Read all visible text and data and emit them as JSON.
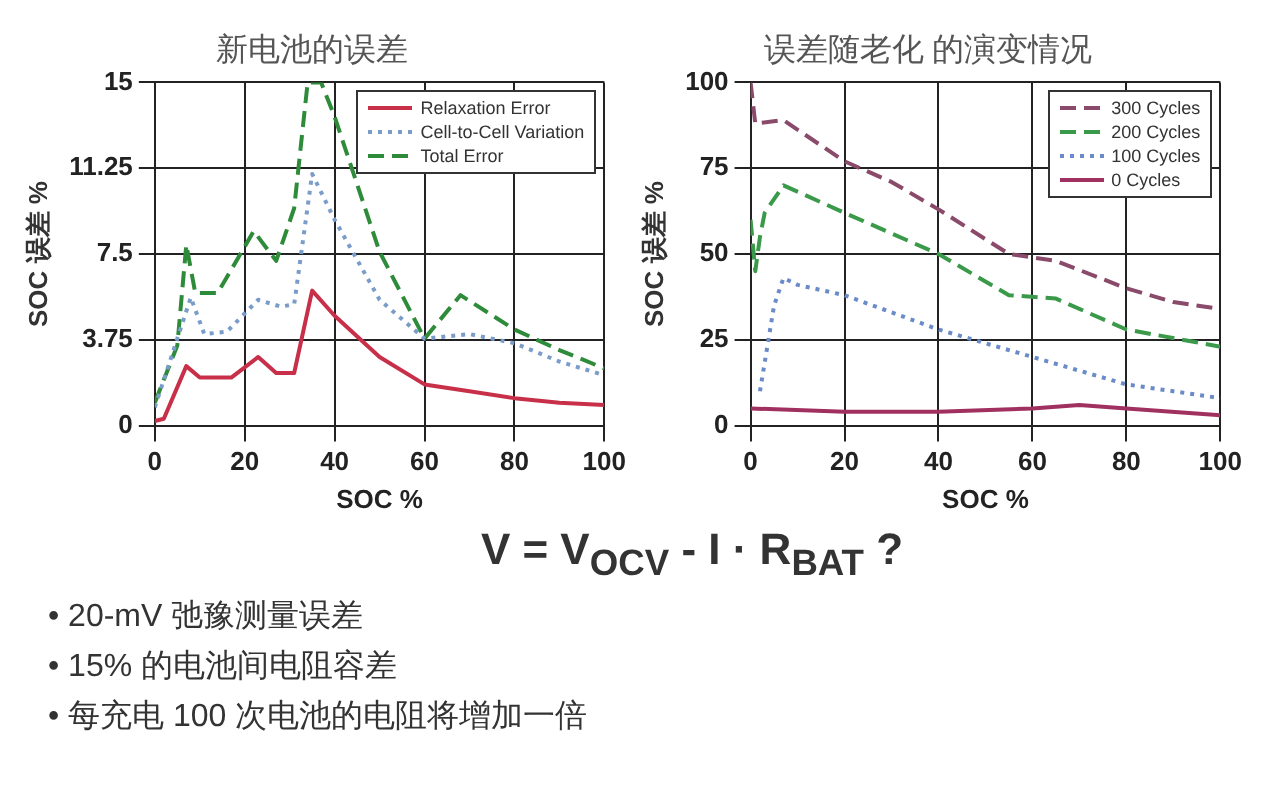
{
  "chart_data": [
    {
      "type": "line",
      "title": "新电池的误差",
      "xlabel": "SOC %",
      "ylabel": "SOC 误差 %",
      "xlim": [
        0,
        100
      ],
      "xticks": [
        0,
        20,
        40,
        60,
        80,
        100
      ],
      "ylim": [
        0,
        15
      ],
      "yticks": [
        0,
        3.75,
        7.5,
        11.25,
        15
      ],
      "grid": true,
      "legend": "top right",
      "marker": "none",
      "series": [
        {
          "name": "Relaxation Error",
          "color": "#c8304a",
          "line_style": "solid",
          "x": [
            0,
            2,
            7,
            10,
            17,
            23,
            27,
            31,
            35,
            40,
            50,
            60,
            70,
            80,
            90,
            100
          ],
          "values": [
            0.2,
            0.3,
            2.6,
            2.1,
            2.1,
            3.0,
            2.3,
            2.3,
            5.9,
            4.8,
            3.0,
            1.8,
            1.5,
            1.2,
            1.0,
            0.9
          ]
        },
        {
          "name": "Cell-to-Cell Variation",
          "color": "#7a9cc8",
          "line_style": "dotted",
          "x": [
            0,
            5,
            8,
            11,
            16,
            23,
            28,
            31,
            35,
            40,
            50,
            60,
            70,
            80,
            90,
            100
          ],
          "values": [
            0.8,
            3.8,
            5.6,
            4.0,
            4.1,
            5.5,
            5.2,
            5.3,
            11.0,
            9.0,
            5.5,
            3.8,
            4.0,
            3.6,
            2.8,
            2.2
          ]
        },
        {
          "name": "Total Error",
          "color": "#2e8b3a",
          "line_style": "dashed",
          "x": [
            0,
            5,
            7,
            9,
            14,
            22,
            27,
            31,
            34,
            37,
            40,
            50,
            60,
            68,
            80,
            90,
            100
          ],
          "values": [
            1.0,
            3.5,
            7.9,
            5.8,
            5.8,
            8.5,
            7.2,
            9.5,
            15,
            15,
            13.5,
            7.6,
            3.8,
            5.7,
            4.2,
            3.3,
            2.5
          ]
        }
      ]
    },
    {
      "type": "line",
      "title": "误差随老化 的演变情况",
      "xlabel": "SOC %",
      "ylabel": "SOC 误差 %",
      "xlim": [
        0,
        100
      ],
      "xticks": [
        0,
        20,
        40,
        60,
        80,
        100
      ],
      "ylim": [
        0,
        100
      ],
      "yticks": [
        0,
        25,
        50,
        75,
        100
      ],
      "grid": true,
      "legend": "top right",
      "marker": "none",
      "series": [
        {
          "name": "300 Cycles",
          "color": "#8a4a6a",
          "line_style": "dashed",
          "x": [
            0,
            1,
            7,
            20,
            30,
            40,
            55,
            65,
            80,
            90,
            100
          ],
          "values": [
            100,
            88,
            89,
            77,
            71,
            63,
            50,
            48,
            40,
            36,
            34
          ]
        },
        {
          "name": "200 Cycles",
          "color": "#3a9a4a",
          "line_style": "dashed",
          "x": [
            0,
            1,
            2,
            3,
            7,
            20,
            40,
            55,
            65,
            80,
            100
          ],
          "values": [
            60,
            45,
            55,
            62,
            70,
            62,
            50,
            38,
            37,
            28,
            23
          ]
        },
        {
          "name": "100 Cycles",
          "color": "#6a8ac8",
          "line_style": "dotted",
          "x": [
            2,
            5,
            7,
            10,
            20,
            40,
            60,
            80,
            100
          ],
          "values": [
            10,
            35,
            43,
            41,
            38,
            28,
            20,
            12,
            8
          ]
        },
        {
          "name": "0 Cycles",
          "color": "#a03060",
          "line_style": "solid",
          "x": [
            0,
            20,
            40,
            60,
            70,
            80,
            100
          ],
          "values": [
            5,
            4,
            4,
            5,
            6,
            5,
            3
          ]
        }
      ]
    },
    {
      "type": "other",
      "annotations": [
        "V = V$_{OCV}$ - I · R$_{BAT}$ ?",
        "• 20-mV 弛豫测量误差",
        "• 15% 的电池间电阻容差",
        "• 每充电 100 次电池的电阻将增加一倍"
      ]
    }
  ]
}
